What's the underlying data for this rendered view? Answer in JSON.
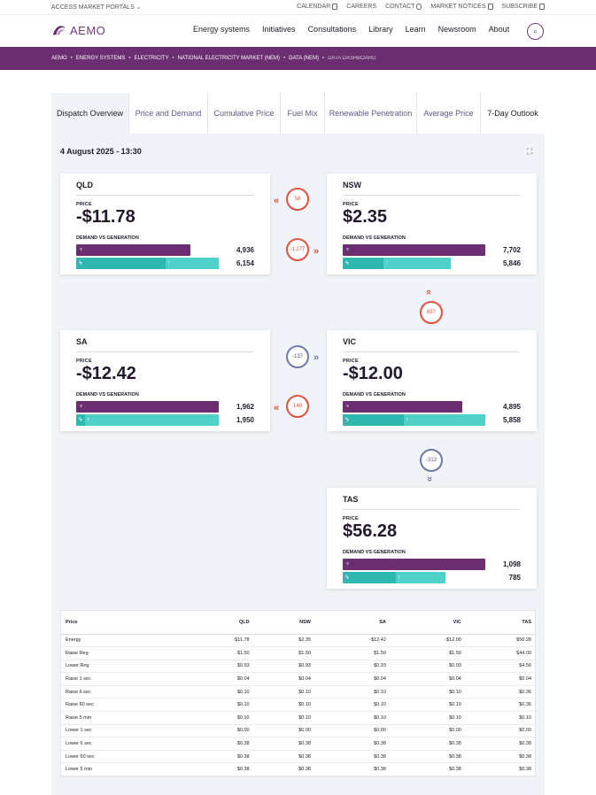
{
  "topbar": {
    "portals": "ACCESS MARKET PORTALS",
    "links": [
      "CALENDAR",
      "CAREERS",
      "CONTACT",
      "MARKET NOTICES",
      "SUBSCRIBE"
    ]
  },
  "brand": {
    "name": "AEMO",
    "color": "#6b2e70"
  },
  "nav": [
    "Energy systems",
    "Initiatives",
    "Consultations",
    "Library",
    "Learn",
    "Newsroom",
    "About"
  ],
  "breadcrumb": [
    "AEMO",
    "ENERGY SYSTEMS",
    "ELECTRICITY",
    "NATIONAL ELECTRICITY MARKET (NEM)",
    "DATA (NEM)",
    "DATA DASHBOARD"
  ],
  "tabs": [
    {
      "label": "Dispatch Overview"
    },
    {
      "label": "Price and Demand"
    },
    {
      "label": "Cumulative Price"
    },
    {
      "label": "Fuel Mix"
    },
    {
      "label": "Renewable Penetration"
    },
    {
      "label": "Average Price"
    },
    {
      "label": "7-Day Outlook"
    }
  ],
  "datetime": "4 August 2025 - 13:30",
  "labels": {
    "price": "PRICE",
    "demand_vs_generation": "DEMAND VS GENERATION"
  },
  "regions": {
    "qld": {
      "name": "QLD",
      "price": "-$11.78",
      "demand": "4,936",
      "generation": "6,154",
      "demand_frac": 0.8,
      "gen_frac": 1.0,
      "gen_split": 0.63
    },
    "nsw": {
      "name": "NSW",
      "price": "$2.35",
      "demand": "7,702",
      "generation": "5,846",
      "demand_frac": 1.0,
      "gen_frac": 0.76,
      "gen_split": 0.38
    },
    "sa": {
      "name": "SA",
      "price": "-$12.42",
      "demand": "1,962",
      "generation": "1,950",
      "demand_frac": 1.0,
      "gen_frac": 1.0,
      "gen_split": 0.06
    },
    "vic": {
      "name": "VIC",
      "price": "-$12.00",
      "demand": "4,895",
      "generation": "5,858",
      "demand_frac": 0.84,
      "gen_frac": 1.0,
      "gen_split": 0.43
    },
    "tas": {
      "name": "TAS",
      "price": "$56.28",
      "demand": "1,098",
      "generation": "785",
      "demand_frac": 1.0,
      "gen_frac": 0.72,
      "gen_split": 0.52
    }
  },
  "flows": {
    "qld_nsw_a": "58",
    "qld_nsw_b": "-1,277",
    "nsw_vic": "837",
    "sa_vic_a": "-137",
    "sa_vic_b": "149",
    "vic_tas": "-313"
  },
  "table": {
    "headers": [
      "Price",
      "QLD",
      "NSW",
      "SA",
      "VIC",
      "TAS"
    ],
    "rows": [
      [
        "Energy",
        "-$11.78",
        "$2.35",
        "-$12.42",
        "-$12.00",
        "$56.28"
      ],
      [
        "Raise Reg",
        "$1.50",
        "$1.50",
        "$1.50",
        "$1.50",
        "$44.00"
      ],
      [
        "Lower Reg",
        "$0.93",
        "$0.93",
        "$0.93",
        "$0.93",
        "$4.56"
      ],
      [
        "Raise 1 sec",
        "$0.04",
        "$0.04",
        "$0.04",
        "$0.04",
        "$0.04"
      ],
      [
        "Raise 6 sec",
        "$0.10",
        "$0.10",
        "$0.10",
        "$0.10",
        "$0.36"
      ],
      [
        "Raise 60 sec",
        "$0.10",
        "$0.10",
        "$0.10",
        "$0.10",
        "$0.36"
      ],
      [
        "Raise 5 min",
        "$0.10",
        "$0.10",
        "$0.10",
        "$0.10",
        "$0.10"
      ],
      [
        "Lower 1 sec",
        "$0.00",
        "$0.00",
        "$0.00",
        "$0.00",
        "$0.00"
      ],
      [
        "Lower 6 sec",
        "$0.38",
        "$0.38",
        "$0.38",
        "$0.38",
        "$0.38"
      ],
      [
        "Lower 60 sec",
        "$0.38",
        "$0.38",
        "$0.38",
        "$0.38",
        "$0.38"
      ],
      [
        "Lower 5 min",
        "$0.38",
        "$0.38",
        "$0.38",
        "$0.38",
        "$0.38"
      ]
    ]
  }
}
